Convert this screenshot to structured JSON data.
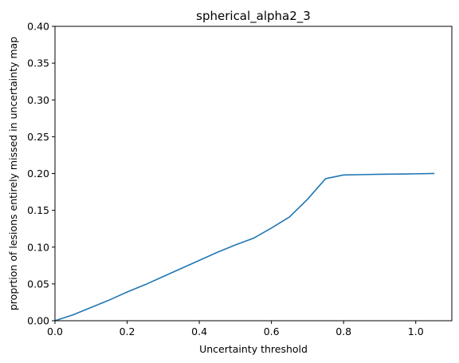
{
  "chart_data": {
    "type": "line",
    "title": "spherical_alpha2_3",
    "xlabel": "Uncertainty threshold",
    "ylabel": "proprtion of lesions entirely missed in uncertainty map",
    "xlim": [
      0.0,
      1.1
    ],
    "ylim": [
      0.0,
      0.4
    ],
    "xticks": [
      0.0,
      0.2,
      0.4,
      0.6,
      0.8,
      1.0
    ],
    "xtick_labels": [
      "0.0",
      "0.2",
      "0.4",
      "0.6",
      "0.8",
      "1.0"
    ],
    "yticks": [
      0.0,
      0.05,
      0.1,
      0.15,
      0.2,
      0.25,
      0.3,
      0.35,
      0.4
    ],
    "ytick_labels": [
      "0.00",
      "0.05",
      "0.10",
      "0.15",
      "0.20",
      "0.25",
      "0.30",
      "0.35",
      "0.40"
    ],
    "grid": false,
    "series": [
      {
        "color": "#1f77b4",
        "x": [
          0.0,
          0.05,
          0.1,
          0.15,
          0.2,
          0.25,
          0.3,
          0.35,
          0.4,
          0.45,
          0.5,
          0.55,
          0.6,
          0.65,
          0.7,
          0.75,
          0.8,
          0.85,
          0.9,
          0.95,
          1.0,
          1.05
        ],
        "y": [
          0.0,
          0.008,
          0.018,
          0.028,
          0.039,
          0.049,
          0.06,
          0.071,
          0.082,
          0.093,
          0.103,
          0.112,
          0.126,
          0.141,
          0.165,
          0.193,
          0.198,
          0.1985,
          0.199,
          0.1993,
          0.1996,
          0.2
        ]
      }
    ]
  }
}
